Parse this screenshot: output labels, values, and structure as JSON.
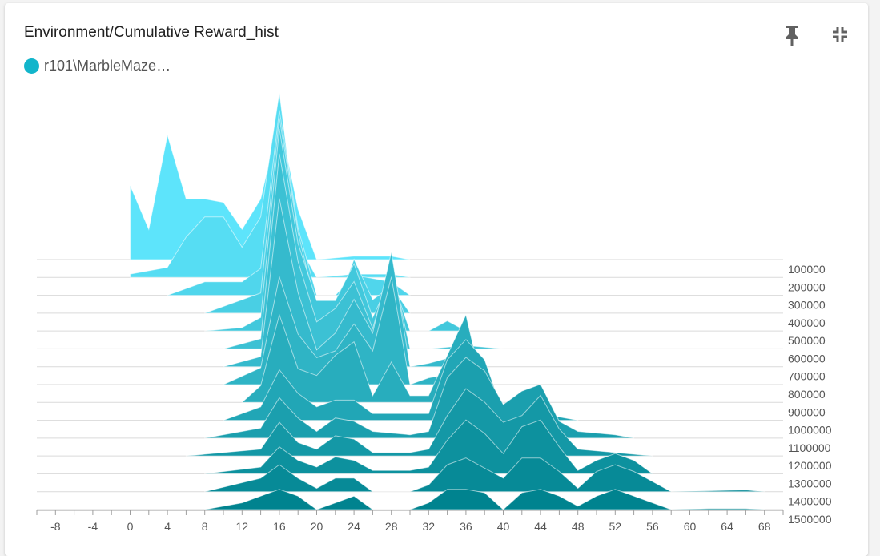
{
  "card": {
    "title": "Environment/Cumulative Reward_hist",
    "legend_label": "r101\\MarbleMaze…",
    "legend_color": "#12b5cb"
  },
  "icons": [
    "pin-icon",
    "collapse-icon"
  ],
  "chart_data": {
    "type": "area",
    "title": "Environment/Cumulative Reward_hist",
    "xlim": [
      -10,
      70
    ],
    "x_ticks": [
      -8,
      -4,
      0,
      4,
      8,
      12,
      16,
      20,
      24,
      28,
      32,
      36,
      40,
      44,
      48,
      52,
      56,
      60,
      64,
      68
    ],
    "y_tick_labels": [
      "100000",
      "200000",
      "300000",
      "400000",
      "500000",
      "600000",
      "700000",
      "800000",
      "900000",
      "1000000",
      "1100000",
      "1200000",
      "1300000",
      "1400000",
      "1500000"
    ],
    "color_light": "#5de4fb",
    "color_dark": "#00838f",
    "series": [
      {
        "step": 100000,
        "points": [
          [
            0,
            0.22
          ],
          [
            2,
            0.09
          ],
          [
            4,
            0.37
          ],
          [
            6,
            0.18
          ],
          [
            8,
            0.18
          ],
          [
            10,
            0.17
          ],
          [
            12,
            0.09
          ],
          [
            14,
            0.18
          ],
          [
            16,
            0.42
          ],
          [
            18,
            0.15
          ],
          [
            20,
            0.0
          ],
          [
            24,
            0.01
          ],
          [
            28,
            0.01
          ],
          [
            30,
            0.0
          ]
        ]
      },
      {
        "step": 200000,
        "points": [
          [
            0,
            0.01
          ],
          [
            4,
            0.03
          ],
          [
            6,
            0.12
          ],
          [
            8,
            0.18
          ],
          [
            10,
            0.18
          ],
          [
            12,
            0.09
          ],
          [
            14,
            0.18
          ],
          [
            16,
            0.55
          ],
          [
            18,
            0.1
          ],
          [
            20,
            0.0
          ],
          [
            24,
            0.01
          ],
          [
            28,
            0.01
          ],
          [
            30,
            0.0
          ]
        ]
      },
      {
        "step": 300000,
        "points": [
          [
            4,
            0.0
          ],
          [
            8,
            0.04
          ],
          [
            12,
            0.04
          ],
          [
            14,
            0.08
          ],
          [
            16,
            0.55
          ],
          [
            18,
            0.2
          ],
          [
            20,
            0.0
          ],
          [
            22,
            0.0
          ],
          [
            24,
            0.06
          ],
          [
            28,
            0.04
          ],
          [
            30,
            0.0
          ]
        ]
      },
      {
        "step": 400000,
        "points": [
          [
            8,
            0.0
          ],
          [
            12,
            0.04
          ],
          [
            14,
            0.06
          ],
          [
            16,
            0.58
          ],
          [
            18,
            0.24
          ],
          [
            20,
            0.01
          ],
          [
            22,
            0.01
          ],
          [
            24,
            0.16
          ],
          [
            26,
            0.04
          ],
          [
            28,
            0.08
          ],
          [
            30,
            0.0
          ]
        ]
      },
      {
        "step": 500000,
        "points": [
          [
            8,
            0.0
          ],
          [
            12,
            0.01
          ],
          [
            14,
            0.04
          ],
          [
            16,
            0.6
          ],
          [
            18,
            0.26
          ],
          [
            20,
            0.09
          ],
          [
            22,
            0.09
          ],
          [
            24,
            0.2
          ],
          [
            26,
            0.04
          ],
          [
            28,
            0.16
          ],
          [
            30,
            0.0
          ],
          [
            32,
            0.0
          ],
          [
            34,
            0.03
          ],
          [
            36,
            0.0
          ]
        ]
      },
      {
        "step": 600000,
        "points": [
          [
            10,
            0.0
          ],
          [
            14,
            0.03
          ],
          [
            16,
            0.58
          ],
          [
            18,
            0.26
          ],
          [
            20,
            0.08
          ],
          [
            22,
            0.12
          ],
          [
            24,
            0.2
          ],
          [
            26,
            0.06
          ],
          [
            28,
            0.25
          ],
          [
            30,
            0.0
          ],
          [
            32,
            0.0
          ],
          [
            36,
            0.01
          ],
          [
            40,
            0.0
          ]
        ]
      },
      {
        "step": 700000,
        "points": [
          [
            10,
            0.0
          ],
          [
            14,
            0.03
          ],
          [
            16,
            0.5
          ],
          [
            18,
            0.22
          ],
          [
            20,
            0.05
          ],
          [
            22,
            0.1
          ],
          [
            24,
            0.2
          ],
          [
            26,
            0.1
          ],
          [
            28,
            0.34
          ],
          [
            30,
            0.0
          ],
          [
            32,
            0.01
          ],
          [
            36,
            0.04
          ],
          [
            38,
            0.0
          ]
        ]
      },
      {
        "step": 800000,
        "points": [
          [
            10,
            0.0
          ],
          [
            14,
            0.05
          ],
          [
            16,
            0.32
          ],
          [
            18,
            0.15
          ],
          [
            20,
            0.08
          ],
          [
            22,
            0.1
          ],
          [
            24,
            0.18
          ],
          [
            26,
            0.1
          ],
          [
            28,
            0.32
          ],
          [
            30,
            0.0
          ],
          [
            32,
            0.02
          ],
          [
            36,
            0.04
          ],
          [
            38,
            0.0
          ]
        ]
      },
      {
        "step": 900000,
        "points": [
          [
            12,
            0.0
          ],
          [
            14,
            0.05
          ],
          [
            16,
            0.26
          ],
          [
            18,
            0.1
          ],
          [
            20,
            0.08
          ],
          [
            22,
            0.14
          ],
          [
            24,
            0.18
          ],
          [
            26,
            0.02
          ],
          [
            28,
            0.12
          ],
          [
            30,
            0.02
          ],
          [
            32,
            0.02
          ],
          [
            34,
            0.14
          ],
          [
            36,
            0.26
          ],
          [
            38,
            0.02
          ],
          [
            40,
            0.0
          ]
        ]
      },
      {
        "step": 1000000,
        "points": [
          [
            10,
            0.0
          ],
          [
            14,
            0.04
          ],
          [
            16,
            0.15
          ],
          [
            18,
            0.08
          ],
          [
            20,
            0.04
          ],
          [
            22,
            0.06
          ],
          [
            24,
            0.06
          ],
          [
            26,
            0.02
          ],
          [
            28,
            0.02
          ],
          [
            30,
            0.02
          ],
          [
            32,
            0.02
          ],
          [
            34,
            0.18
          ],
          [
            36,
            0.24
          ],
          [
            38,
            0.18
          ],
          [
            40,
            0.02
          ],
          [
            44,
            0.02
          ],
          [
            48,
            0.0
          ]
        ]
      },
      {
        "step": 1100000,
        "points": [
          [
            8,
            0.0
          ],
          [
            14,
            0.03
          ],
          [
            16,
            0.12
          ],
          [
            18,
            0.06
          ],
          [
            20,
            0.02
          ],
          [
            22,
            0.06
          ],
          [
            24,
            0.05
          ],
          [
            26,
            0.02
          ],
          [
            30,
            0.01
          ],
          [
            32,
            0.02
          ],
          [
            34,
            0.18
          ],
          [
            36,
            0.24
          ],
          [
            38,
            0.2
          ],
          [
            40,
            0.1
          ],
          [
            42,
            0.14
          ],
          [
            44,
            0.16
          ],
          [
            46,
            0.05
          ],
          [
            48,
            0.02
          ],
          [
            52,
            0.01
          ],
          [
            54,
            0.0
          ]
        ]
      },
      {
        "step": 1200000,
        "points": [
          [
            6,
            0.0
          ],
          [
            14,
            0.02
          ],
          [
            16,
            0.1
          ],
          [
            18,
            0.04
          ],
          [
            20,
            0.02
          ],
          [
            22,
            0.06
          ],
          [
            24,
            0.05
          ],
          [
            26,
            0.01
          ],
          [
            30,
            0.01
          ],
          [
            32,
            0.02
          ],
          [
            34,
            0.12
          ],
          [
            36,
            0.2
          ],
          [
            38,
            0.16
          ],
          [
            40,
            0.1
          ],
          [
            42,
            0.12
          ],
          [
            44,
            0.18
          ],
          [
            46,
            0.08
          ],
          [
            48,
            0.02
          ],
          [
            56,
            0.0
          ]
        ]
      },
      {
        "step": 1300000,
        "points": [
          [
            8,
            0.0
          ],
          [
            14,
            0.02
          ],
          [
            16,
            0.08
          ],
          [
            18,
            0.04
          ],
          [
            20,
            0.02
          ],
          [
            22,
            0.05
          ],
          [
            24,
            0.04
          ],
          [
            26,
            0.01
          ],
          [
            30,
            0.01
          ],
          [
            32,
            0.02
          ],
          [
            34,
            0.1
          ],
          [
            36,
            0.16
          ],
          [
            38,
            0.12
          ],
          [
            40,
            0.06
          ],
          [
            42,
            0.14
          ],
          [
            44,
            0.16
          ],
          [
            46,
            0.08
          ],
          [
            48,
            0.01
          ],
          [
            50,
            0.04
          ],
          [
            52,
            0.06
          ],
          [
            54,
            0.04
          ],
          [
            56,
            0.0
          ]
        ]
      },
      {
        "step": 1400000,
        "points": [
          [
            8,
            0.0
          ],
          [
            14,
            0.04
          ],
          [
            16,
            0.08
          ],
          [
            18,
            0.04
          ],
          [
            20,
            0.01
          ],
          [
            22,
            0.04
          ],
          [
            24,
            0.04
          ],
          [
            26,
            0.0
          ],
          [
            30,
            0.0
          ],
          [
            32,
            0.02
          ],
          [
            34,
            0.08
          ],
          [
            36,
            0.1
          ],
          [
            38,
            0.07
          ],
          [
            40,
            0.04
          ],
          [
            42,
            0.1
          ],
          [
            44,
            0.1
          ],
          [
            46,
            0.06
          ],
          [
            48,
            0.01
          ],
          [
            50,
            0.06
          ],
          [
            52,
            0.08
          ],
          [
            54,
            0.06
          ],
          [
            56,
            0.03
          ],
          [
            58,
            0.0
          ],
          [
            66,
            0.005
          ],
          [
            68,
            0.0
          ]
        ]
      },
      {
        "step": 1500000,
        "points": [
          [
            8,
            0.0
          ],
          [
            12,
            0.02
          ],
          [
            14,
            0.04
          ],
          [
            16,
            0.06
          ],
          [
            18,
            0.04
          ],
          [
            20,
            0.0
          ],
          [
            22,
            0.02
          ],
          [
            24,
            0.04
          ],
          [
            26,
            0.0
          ],
          [
            30,
            0.0
          ],
          [
            32,
            0.02
          ],
          [
            34,
            0.06
          ],
          [
            36,
            0.06
          ],
          [
            38,
            0.05
          ],
          [
            40,
            0.0
          ],
          [
            42,
            0.05
          ],
          [
            44,
            0.06
          ],
          [
            46,
            0.04
          ],
          [
            48,
            0.01
          ],
          [
            50,
            0.04
          ],
          [
            52,
            0.06
          ],
          [
            54,
            0.04
          ],
          [
            56,
            0.02
          ],
          [
            58,
            0.0
          ],
          [
            62,
            0.003
          ],
          [
            66,
            0.003
          ],
          [
            68,
            0.0
          ]
        ]
      }
    ]
  }
}
